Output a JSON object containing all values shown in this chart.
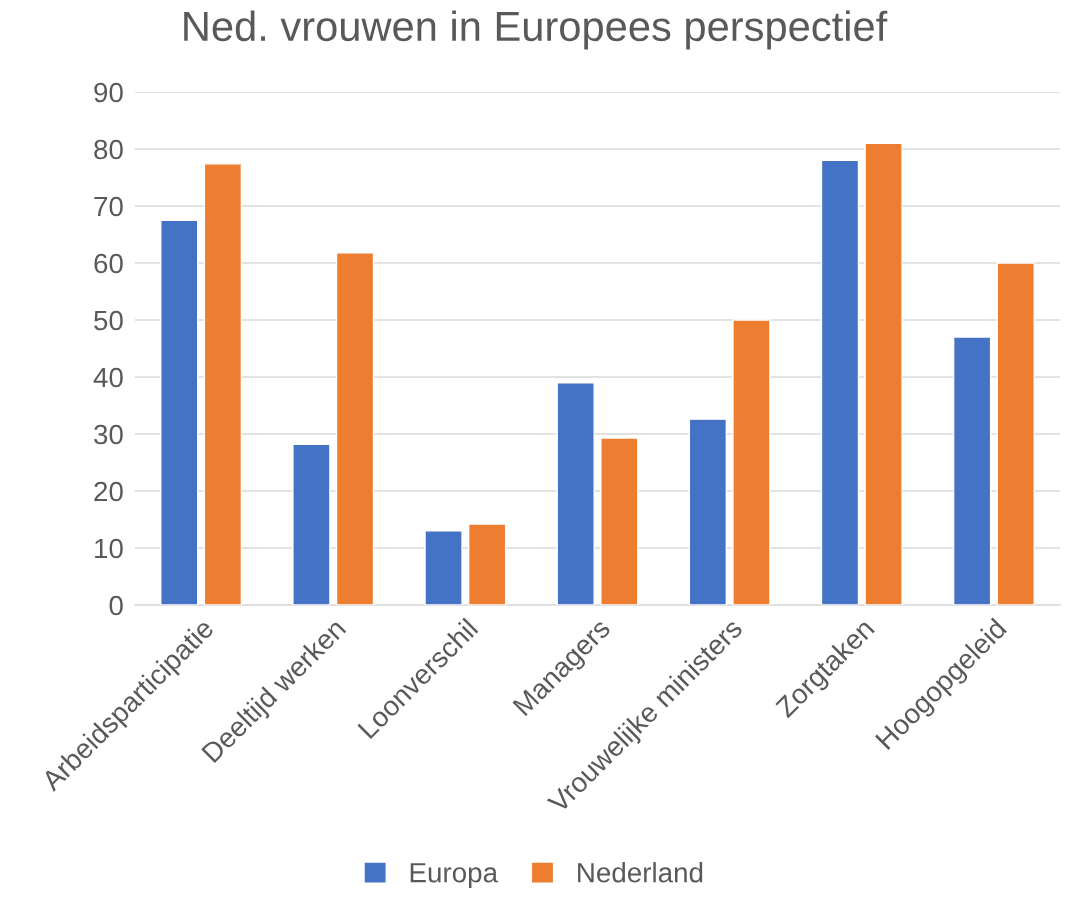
{
  "chart_data": {
    "type": "bar",
    "title": "Ned. vrouwen in Europees perspectief",
    "categories": [
      "Arbeidsparticipatie",
      "Deeltijd werken",
      "Loonverschil",
      "Managers",
      "Vrouwelijke ministers",
      "Zorgtaken",
      "Hoogopgeleid"
    ],
    "series": [
      {
        "name": "Europa",
        "color": "#4472c4",
        "values": [
          67.5,
          28.2,
          13,
          39,
          32.6,
          78,
          47
        ]
      },
      {
        "name": "Nederland",
        "color": "#ed7d31",
        "values": [
          77.4,
          61.8,
          14.2,
          29.3,
          50,
          81,
          60
        ]
      }
    ],
    "ylim": [
      0,
      90
    ],
    "yticks": [
      0,
      10,
      20,
      30,
      40,
      50,
      60,
      70,
      80,
      90
    ],
    "grid": "y",
    "legend": "bottom"
  }
}
